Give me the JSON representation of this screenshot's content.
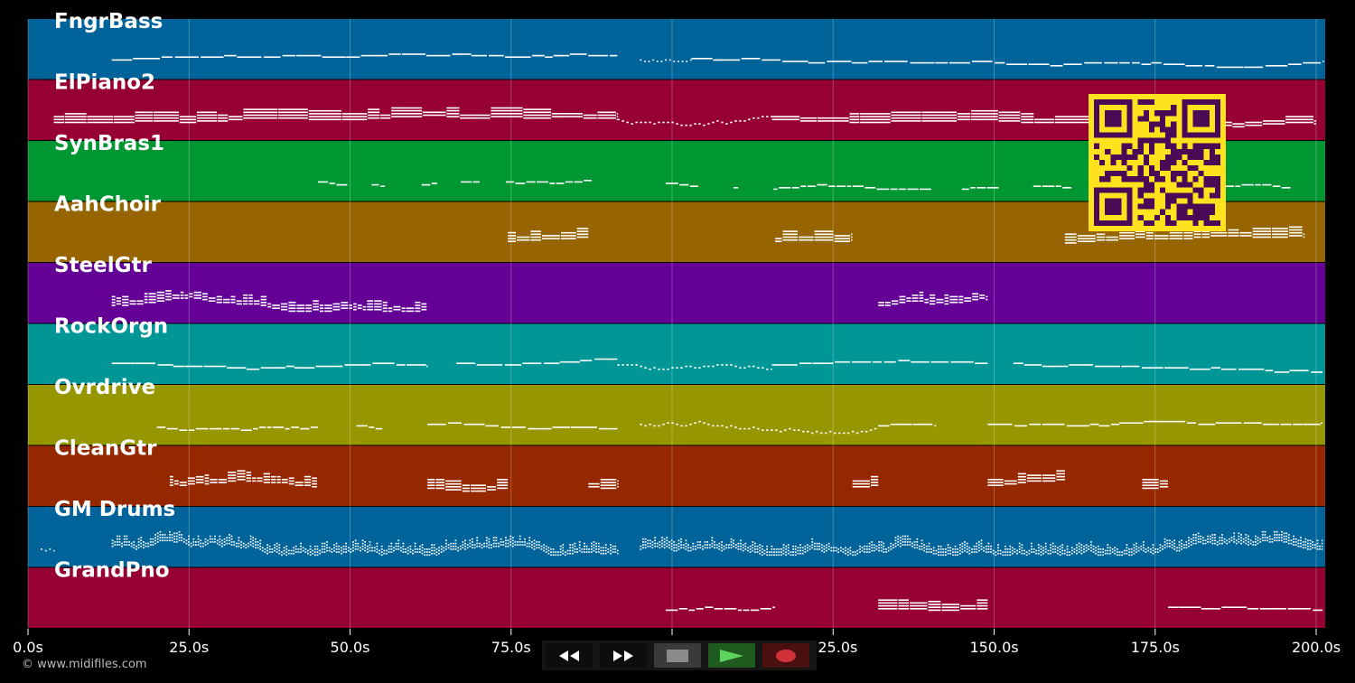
{
  "app": {
    "copyright": "© www.midifiles.com"
  },
  "transport": {
    "rewind_icon": "rewind-icon",
    "forward_icon": "fast-forward-icon",
    "stop_icon": "stop-icon",
    "play_icon": "play-icon",
    "record_icon": "record-icon",
    "colors": {
      "background": "#151515",
      "rewind": "#0d0d0d",
      "stop": "#3a3a3a",
      "play": "#1f5a1f",
      "record": "#4a1010"
    }
  },
  "qr_code": {
    "icon": "qr-code-icon",
    "foreground": "#4a0a55",
    "background": "#ffe21e"
  },
  "chart_data": {
    "type": "piano-roll",
    "x": {
      "unit": "s",
      "min": 0,
      "max": 201.4,
      "ticks": [
        0,
        25,
        50,
        75,
        100,
        125,
        150,
        175,
        200
      ],
      "tick_labels": [
        "0.0s",
        "25.0s",
        "50.0s",
        "75.0s",
        "100.0s",
        "125.0s",
        "150.0s",
        "175.0s",
        "200.0s"
      ]
    },
    "grid": true,
    "tracks": [
      {
        "name": "FngrBass",
        "color": "#00649b",
        "segments": [
          [
            13,
            91.5,
            "legato"
          ],
          [
            95,
            103,
            "sparse"
          ],
          [
            103,
            201,
            "legato"
          ]
        ]
      },
      {
        "name": "ElPiano2",
        "color": "#960032",
        "segments": [
          [
            4,
            91.5,
            "dense"
          ],
          [
            91.5,
            115.5,
            "repeated"
          ],
          [
            115.5,
            200,
            "dense"
          ]
        ]
      },
      {
        "name": "SynBras1",
        "color": "#009632",
        "segments": [
          [
            45,
            87.5,
            "phrases"
          ],
          [
            99,
            196,
            "phrases"
          ]
        ]
      },
      {
        "name": "AahChoir",
        "color": "#966400",
        "segments": [
          [
            74.5,
            87,
            "chords"
          ],
          [
            116,
            128,
            "chords"
          ],
          [
            161,
            198,
            "chords"
          ]
        ]
      },
      {
        "name": "SteelGtr",
        "color": "#640096",
        "segments": [
          [
            13,
            62,
            "arpeggio"
          ],
          [
            132,
            149,
            "arpeggio"
          ]
        ]
      },
      {
        "name": "RockOrgn",
        "color": "#009696",
        "segments": [
          [
            13,
            62,
            "legato"
          ],
          [
            66.5,
            91.5,
            "legato"
          ],
          [
            91.5,
            115.5,
            "repeated"
          ],
          [
            115.5,
            149,
            "legato"
          ],
          [
            153,
            201,
            "legato"
          ]
        ]
      },
      {
        "name": "Ovrdrive",
        "color": "#969600",
        "segments": [
          [
            20,
            45,
            "phrases"
          ],
          [
            51,
            55,
            "phrases"
          ],
          [
            62,
            91.5,
            "legato"
          ],
          [
            95,
            132,
            "repeated"
          ],
          [
            132,
            141,
            "legato"
          ],
          [
            149,
            201,
            "legato"
          ]
        ]
      },
      {
        "name": "CleanGtr",
        "color": "#962800",
        "segments": [
          [
            22,
            45,
            "arpeggio"
          ],
          [
            62,
            74.5,
            "chords"
          ],
          [
            87,
            91.5,
            "chords"
          ],
          [
            128,
            132,
            "chords"
          ],
          [
            149,
            161,
            "chords"
          ],
          [
            173,
            177,
            "chords"
          ]
        ]
      },
      {
        "name": "GM Drums",
        "color": "#00649b",
        "segments": [
          [
            2,
            4,
            "hits"
          ],
          [
            13,
            91.5,
            "drums"
          ],
          [
            95,
            201,
            "drums"
          ]
        ]
      },
      {
        "name": "GrandPno",
        "color": "#960032",
        "segments": [
          [
            99,
            116,
            "phrases"
          ],
          [
            132,
            149,
            "chords"
          ],
          [
            177,
            201,
            "legato"
          ]
        ]
      }
    ]
  }
}
